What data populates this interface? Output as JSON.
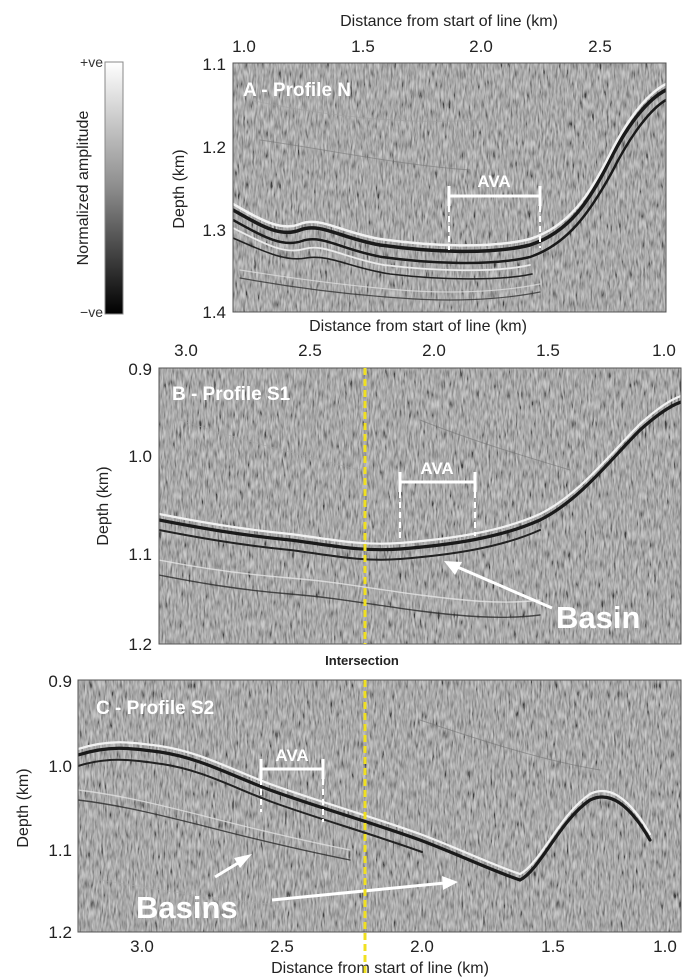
{
  "colorbar": {
    "title": "Normalized amplitude",
    "top_label": "+ve",
    "bottom_label": "−ve"
  },
  "panels": [
    {
      "label": "A - Profile N",
      "x_axis_title": "Distance from start of line (km)",
      "x_ticks": [
        "1.0",
        "1.5",
        "2.0",
        "2.5"
      ],
      "y_axis_title": "Depth (km)",
      "y_ticks": [
        "1.1",
        "1.2",
        "1.3",
        "1.4"
      ],
      "annotations": [
        "AVA"
      ]
    },
    {
      "label": "B - Profile S1",
      "x_axis_title": "Distance from start of line (km)",
      "x_ticks": [
        "3.0",
        "2.5",
        "2.0",
        "1.5",
        "1.0"
      ],
      "y_axis_title": "Depth (km)",
      "y_ticks": [
        "0.9",
        "1.0",
        "1.1",
        "1.2"
      ],
      "annotations": [
        "AVA",
        "Basin"
      ]
    },
    {
      "label": "C - Profile S2",
      "x_axis_title": "Distance from start of line (km)",
      "x_ticks": [
        "3.0",
        "2.5",
        "2.0",
        "1.5",
        "1.0"
      ],
      "y_axis_title": "Depth (km)",
      "y_ticks": [
        "0.9",
        "1.0",
        "1.1",
        "1.2"
      ],
      "annotations": [
        "AVA",
        "Basins"
      ]
    }
  ],
  "intersection_label": "Intersection",
  "colors": {
    "seismic_gray": "#8c8c8c",
    "intersection_line": "#f0e020",
    "annotation": "#ffffff"
  }
}
